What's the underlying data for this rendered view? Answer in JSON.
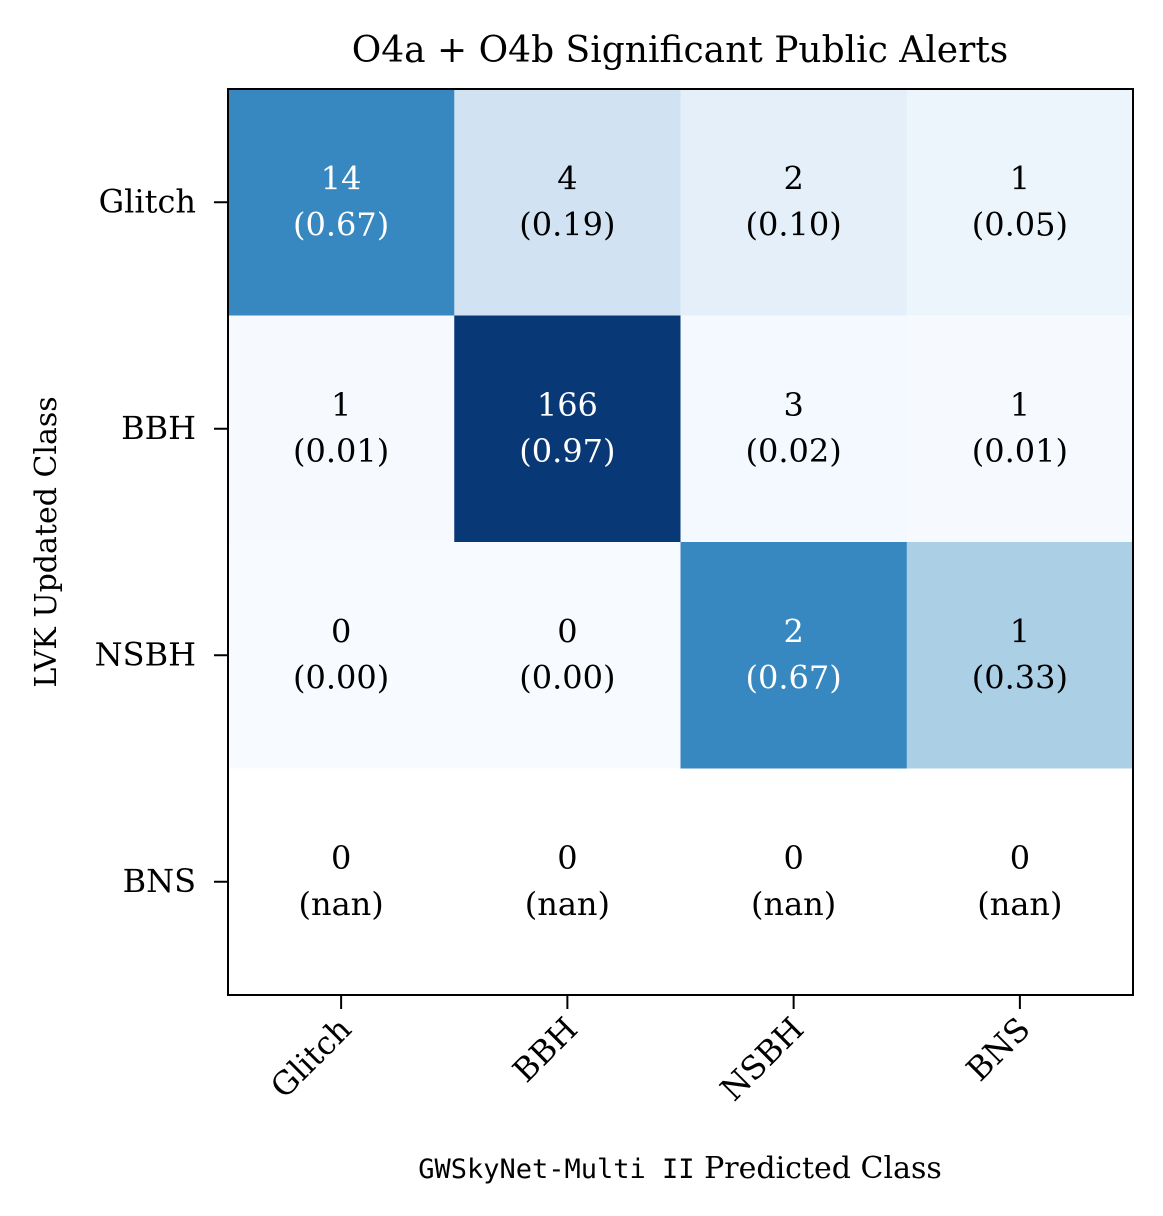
{
  "chart_data": {
    "type": "heatmap",
    "title": "O4a + O4b Significant Public Alerts",
    "xlabel_code": "GWSkyNet-Multi II",
    "xlabel_text": " Predicted Class",
    "ylabel": "LVK Updated Class",
    "x_categories": [
      "Glitch",
      "BBH",
      "NSBH",
      "BNS"
    ],
    "y_categories": [
      "Glitch",
      "BBH",
      "NSBH",
      "BNS"
    ],
    "counts": [
      [
        14,
        4,
        2,
        1
      ],
      [
        1,
        166,
        3,
        1
      ],
      [
        0,
        0,
        2,
        1
      ],
      [
        0,
        0,
        0,
        0
      ]
    ],
    "fractions": [
      [
        "(0.67)",
        "(0.19)",
        "(0.10)",
        "(0.05)"
      ],
      [
        "(0.01)",
        "(0.97)",
        "(0.02)",
        "(0.01)"
      ],
      [
        "(0.00)",
        "(0.00)",
        "(0.67)",
        "(0.33)"
      ],
      [
        "(nan)",
        "(nan)",
        "(nan)",
        "(nan)"
      ]
    ],
    "colormap": "Blues",
    "grid": false
  }
}
